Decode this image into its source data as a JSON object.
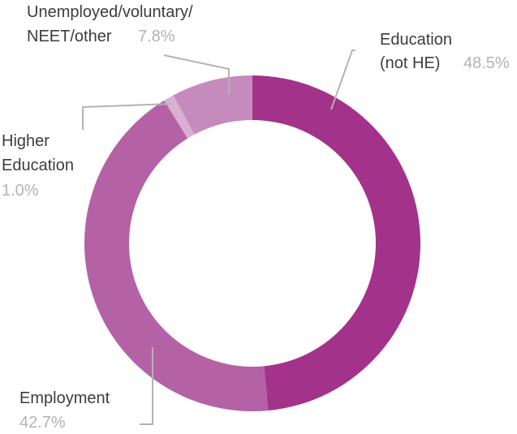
{
  "chart_data": {
    "type": "pie",
    "donut": true,
    "slices": [
      {
        "label_lines": [
          "Education",
          "(not HE)"
        ],
        "value": 48.5,
        "value_label": "48.5%",
        "color": "#a3328b"
      },
      {
        "label_lines": [
          "Employment"
        ],
        "value": 42.7,
        "value_label": "42.7%",
        "color": "#b462a5"
      },
      {
        "label_lines": [
          "Higher",
          "Education"
        ],
        "value": 1.0,
        "value_label": "1.0%",
        "color": "#d9b0d3"
      },
      {
        "label_lines": [
          "Unemployed/voluntary/",
          "NEET/other"
        ],
        "value": 7.8,
        "value_label": "7.8%",
        "color": "#c68bbd"
      }
    ]
  }
}
